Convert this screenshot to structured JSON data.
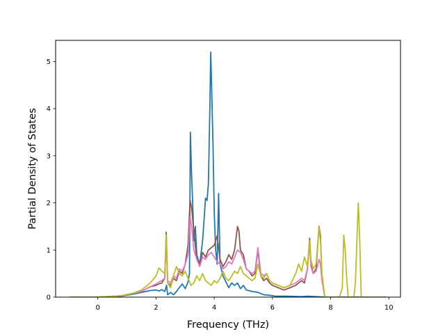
{
  "chart_data": {
    "type": "line",
    "xlabel": "Frequency (THz)",
    "ylabel": "Partial Density of States",
    "xlim": [
      -1.45,
      10.4
    ],
    "ylim": [
      0,
      5.45
    ],
    "xticks": [
      0,
      2,
      4,
      6,
      8,
      10
    ],
    "yticks": [
      0,
      1,
      2,
      3,
      4,
      5
    ],
    "legend": "none",
    "grid": false,
    "series": [
      {
        "color": "#1f77b4",
        "points": [
          [
            -0.95,
            0
          ],
          [
            0,
            0
          ],
          [
            0.8,
            0.02
          ],
          [
            1.2,
            0.06
          ],
          [
            1.5,
            0.1
          ],
          [
            1.8,
            0.14
          ],
          [
            2.0,
            0.15
          ],
          [
            2.1,
            0.13
          ],
          [
            2.2,
            0.16
          ],
          [
            2.3,
            0.12
          ],
          [
            2.36,
            0.25
          ],
          [
            2.4,
            0.05
          ],
          [
            2.5,
            0.1
          ],
          [
            2.6,
            0.05
          ],
          [
            2.7,
            0.12
          ],
          [
            2.8,
            0.2
          ],
          [
            2.9,
            0.28
          ],
          [
            3.0,
            0.18
          ],
          [
            3.1,
            0.32
          ],
          [
            3.15,
            0.5
          ],
          [
            3.18,
            3.5
          ],
          [
            3.22,
            2.6
          ],
          [
            3.26,
            2.0
          ],
          [
            3.3,
            1.2
          ],
          [
            3.35,
            1.5
          ],
          [
            3.4,
            0.9
          ],
          [
            3.5,
            0.7
          ],
          [
            3.6,
            1.2
          ],
          [
            3.7,
            2.1
          ],
          [
            3.75,
            2.05
          ],
          [
            3.8,
            2.4
          ],
          [
            3.85,
            4.0
          ],
          [
            3.88,
            5.2
          ],
          [
            3.92,
            4.2
          ],
          [
            3.96,
            3.2
          ],
          [
            4.0,
            1.8
          ],
          [
            4.05,
            1.0
          ],
          [
            4.1,
            0.7
          ],
          [
            4.15,
            2.2
          ],
          [
            4.2,
            0.7
          ],
          [
            4.3,
            0.45
          ],
          [
            4.5,
            0.2
          ],
          [
            4.6,
            0.3
          ],
          [
            4.7,
            0.25
          ],
          [
            4.8,
            0.3
          ],
          [
            4.9,
            0.18
          ],
          [
            5.0,
            0.25
          ],
          [
            5.1,
            0.15
          ],
          [
            5.3,
            0.12
          ],
          [
            5.5,
            0.1
          ],
          [
            5.7,
            0.05
          ],
          [
            5.9,
            0.04
          ],
          [
            6.1,
            0.02
          ],
          [
            6.5,
            0.02
          ],
          [
            7.0,
            0.01
          ],
          [
            7.2,
            0.02
          ],
          [
            7.5,
            0.01
          ],
          [
            7.8,
            0
          ],
          [
            9.9,
            0
          ]
        ]
      },
      {
        "color": "#8c564b",
        "points": [
          [
            -0.95,
            0
          ],
          [
            0,
            0
          ],
          [
            0.8,
            0.03
          ],
          [
            1.2,
            0.08
          ],
          [
            1.5,
            0.12
          ],
          [
            1.8,
            0.22
          ],
          [
            2.0,
            0.25
          ],
          [
            2.1,
            0.28
          ],
          [
            2.2,
            0.3
          ],
          [
            2.3,
            0.4
          ],
          [
            2.35,
            1.38
          ],
          [
            2.4,
            0.3
          ],
          [
            2.5,
            0.25
          ],
          [
            2.6,
            0.4
          ],
          [
            2.7,
            0.35
          ],
          [
            2.8,
            0.55
          ],
          [
            2.9,
            0.5
          ],
          [
            3.0,
            0.7
          ],
          [
            3.1,
            1.1
          ],
          [
            3.17,
            2.06
          ],
          [
            3.22,
            1.9
          ],
          [
            3.3,
            1.4
          ],
          [
            3.4,
            0.8
          ],
          [
            3.5,
            0.7
          ],
          [
            3.6,
            0.95
          ],
          [
            3.7,
            0.85
          ],
          [
            3.8,
            1.0
          ],
          [
            3.9,
            1.05
          ],
          [
            4.0,
            1.1
          ],
          [
            4.1,
            1.3
          ],
          [
            4.2,
            0.8
          ],
          [
            4.3,
            0.65
          ],
          [
            4.4,
            0.75
          ],
          [
            4.5,
            0.9
          ],
          [
            4.6,
            0.8
          ],
          [
            4.7,
            1.0
          ],
          [
            4.8,
            1.5
          ],
          [
            4.85,
            1.4
          ],
          [
            4.9,
            1.0
          ],
          [
            5.0,
            0.9
          ],
          [
            5.1,
            0.6
          ],
          [
            5.2,
            0.55
          ],
          [
            5.3,
            0.45
          ],
          [
            5.4,
            0.5
          ],
          [
            5.5,
            1.0
          ],
          [
            5.6,
            0.45
          ],
          [
            5.7,
            0.35
          ],
          [
            5.8,
            0.4
          ],
          [
            5.9,
            0.3
          ],
          [
            6.0,
            0.25
          ],
          [
            6.2,
            0.2
          ],
          [
            6.4,
            0.15
          ],
          [
            6.6,
            0.2
          ],
          [
            6.8,
            0.25
          ],
          [
            7.0,
            0.35
          ],
          [
            7.1,
            0.3
          ],
          [
            7.2,
            0.6
          ],
          [
            7.28,
            1.25
          ],
          [
            7.32,
            0.7
          ],
          [
            7.4,
            0.5
          ],
          [
            7.5,
            0.6
          ],
          [
            7.6,
            1.5
          ],
          [
            7.65,
            1.3
          ],
          [
            7.7,
            0.4
          ],
          [
            7.8,
            0
          ],
          [
            9.9,
            0
          ]
        ]
      },
      {
        "color": "#e377c2",
        "points": [
          [
            -0.95,
            0
          ],
          [
            0,
            0
          ],
          [
            0.8,
            0.03
          ],
          [
            1.2,
            0.08
          ],
          [
            1.5,
            0.12
          ],
          [
            1.8,
            0.22
          ],
          [
            2.0,
            0.28
          ],
          [
            2.1,
            0.32
          ],
          [
            2.2,
            0.35
          ],
          [
            2.3,
            0.4
          ],
          [
            2.35,
            1.3
          ],
          [
            2.4,
            0.35
          ],
          [
            2.5,
            0.3
          ],
          [
            2.6,
            0.45
          ],
          [
            2.7,
            0.4
          ],
          [
            2.8,
            0.6
          ],
          [
            2.9,
            0.55
          ],
          [
            3.0,
            0.7
          ],
          [
            3.1,
            0.9
          ],
          [
            3.17,
            1.7
          ],
          [
            3.22,
            1.5
          ],
          [
            3.3,
            1.0
          ],
          [
            3.4,
            0.8
          ],
          [
            3.5,
            0.65
          ],
          [
            3.6,
            0.85
          ],
          [
            3.7,
            0.8
          ],
          [
            3.8,
            0.9
          ],
          [
            3.9,
            0.95
          ],
          [
            4.0,
            0.85
          ],
          [
            4.1,
            0.75
          ],
          [
            4.2,
            0.7
          ],
          [
            4.3,
            0.6
          ],
          [
            4.4,
            0.65
          ],
          [
            4.5,
            0.75
          ],
          [
            4.6,
            0.7
          ],
          [
            4.7,
            0.85
          ],
          [
            4.8,
            1.0
          ],
          [
            4.9,
            0.95
          ],
          [
            5.0,
            0.8
          ],
          [
            5.1,
            0.6
          ],
          [
            5.2,
            0.55
          ],
          [
            5.3,
            0.5
          ],
          [
            5.4,
            0.55
          ],
          [
            5.5,
            1.05
          ],
          [
            5.6,
            0.5
          ],
          [
            5.7,
            0.45
          ],
          [
            5.8,
            0.5
          ],
          [
            5.9,
            0.35
          ],
          [
            6.0,
            0.3
          ],
          [
            6.2,
            0.25
          ],
          [
            6.4,
            0.2
          ],
          [
            6.6,
            0.25
          ],
          [
            6.8,
            0.3
          ],
          [
            7.0,
            0.4
          ],
          [
            7.1,
            0.35
          ],
          [
            7.2,
            0.6
          ],
          [
            7.28,
            1.15
          ],
          [
            7.32,
            0.65
          ],
          [
            7.4,
            0.5
          ],
          [
            7.5,
            0.55
          ],
          [
            7.6,
            0.8
          ],
          [
            7.65,
            0.7
          ],
          [
            7.7,
            0.35
          ],
          [
            7.8,
            0
          ],
          [
            9.9,
            0
          ]
        ]
      },
      {
        "color": "#bcbd22",
        "points": [
          [
            -0.95,
            0
          ],
          [
            0,
            0
          ],
          [
            0.8,
            0.03
          ],
          [
            1.2,
            0.08
          ],
          [
            1.5,
            0.15
          ],
          [
            1.8,
            0.3
          ],
          [
            2.0,
            0.45
          ],
          [
            2.1,
            0.62
          ],
          [
            2.2,
            0.55
          ],
          [
            2.3,
            0.5
          ],
          [
            2.35,
            1.32
          ],
          [
            2.4,
            0.3
          ],
          [
            2.5,
            0.2
          ],
          [
            2.6,
            0.45
          ],
          [
            2.7,
            0.65
          ],
          [
            2.8,
            0.5
          ],
          [
            2.9,
            0.45
          ],
          [
            3.0,
            0.55
          ],
          [
            3.1,
            0.4
          ],
          [
            3.2,
            0.25
          ],
          [
            3.3,
            0.3
          ],
          [
            3.4,
            0.45
          ],
          [
            3.5,
            0.35
          ],
          [
            3.6,
            0.5
          ],
          [
            3.7,
            0.35
          ],
          [
            3.8,
            0.3
          ],
          [
            3.9,
            0.25
          ],
          [
            4.0,
            0.35
          ],
          [
            4.1,
            0.3
          ],
          [
            4.2,
            0.4
          ],
          [
            4.3,
            0.55
          ],
          [
            4.4,
            0.4
          ],
          [
            4.5,
            0.35
          ],
          [
            4.6,
            0.45
          ],
          [
            4.7,
            0.55
          ],
          [
            4.8,
            0.5
          ],
          [
            4.9,
            0.65
          ],
          [
            5.0,
            0.5
          ],
          [
            5.1,
            0.45
          ],
          [
            5.2,
            0.4
          ],
          [
            5.3,
            0.35
          ],
          [
            5.4,
            0.4
          ],
          [
            5.5,
            0.7
          ],
          [
            5.6,
            0.45
          ],
          [
            5.7,
            0.4
          ],
          [
            5.8,
            0.5
          ],
          [
            5.9,
            0.35
          ],
          [
            6.0,
            0.3
          ],
          [
            6.2,
            0.25
          ],
          [
            6.4,
            0.2
          ],
          [
            6.6,
            0.25
          ],
          [
            6.8,
            0.5
          ],
          [
            6.9,
            0.7
          ],
          [
            7.0,
            0.55
          ],
          [
            7.1,
            0.85
          ],
          [
            7.2,
            0.65
          ],
          [
            7.28,
            1.2
          ],
          [
            7.32,
            0.8
          ],
          [
            7.4,
            0.6
          ],
          [
            7.5,
            0.7
          ],
          [
            7.6,
            1.48
          ],
          [
            7.65,
            1.2
          ],
          [
            7.7,
            0.5
          ],
          [
            7.8,
            0
          ],
          [
            8.3,
            0
          ],
          [
            8.4,
            0.2
          ],
          [
            8.45,
            1.32
          ],
          [
            8.5,
            1.0
          ],
          [
            8.55,
            0.4
          ],
          [
            8.6,
            0
          ],
          [
            8.8,
            0
          ],
          [
            8.85,
            0.3
          ],
          [
            8.95,
            2.0
          ],
          [
            9.0,
            1.2
          ],
          [
            9.05,
            0
          ],
          [
            9.9,
            0
          ]
        ]
      }
    ]
  }
}
